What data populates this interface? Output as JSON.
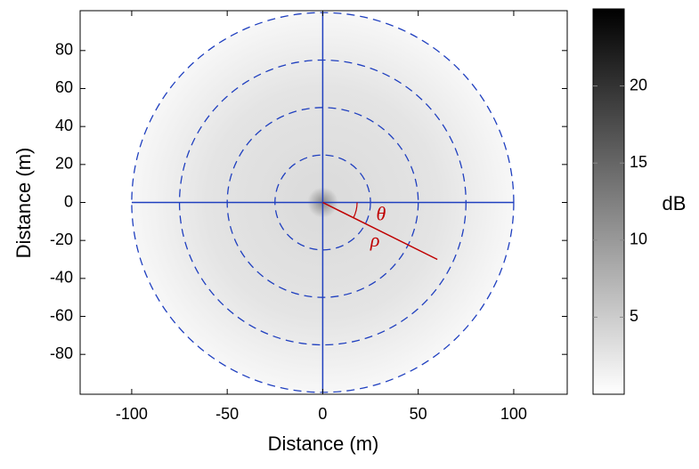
{
  "chart_data": {
    "type": "polar-image",
    "xlabel": "Distance (m)",
    "ylabel": "Distance (m)",
    "xlim": [
      -127,
      128
    ],
    "ylim": [
      -101,
      101
    ],
    "xticks": [
      -100,
      -50,
      0,
      50,
      100
    ],
    "yticks": [
      -80,
      -60,
      -40,
      -20,
      0,
      20,
      40,
      60,
      80
    ],
    "range_rings": [
      25,
      50,
      75,
      100
    ],
    "ring_color": "#1f3fbf",
    "ray": {
      "x": [
        0,
        60
      ],
      "y": [
        0,
        -30
      ],
      "color": "#c00000"
    },
    "annotations": [
      {
        "text": "θ"
      },
      {
        "text": "ρ"
      }
    ],
    "colorbar": {
      "label": "dB",
      "lim": [
        0,
        25
      ],
      "ticks": [
        5,
        10,
        15,
        20
      ]
    }
  }
}
